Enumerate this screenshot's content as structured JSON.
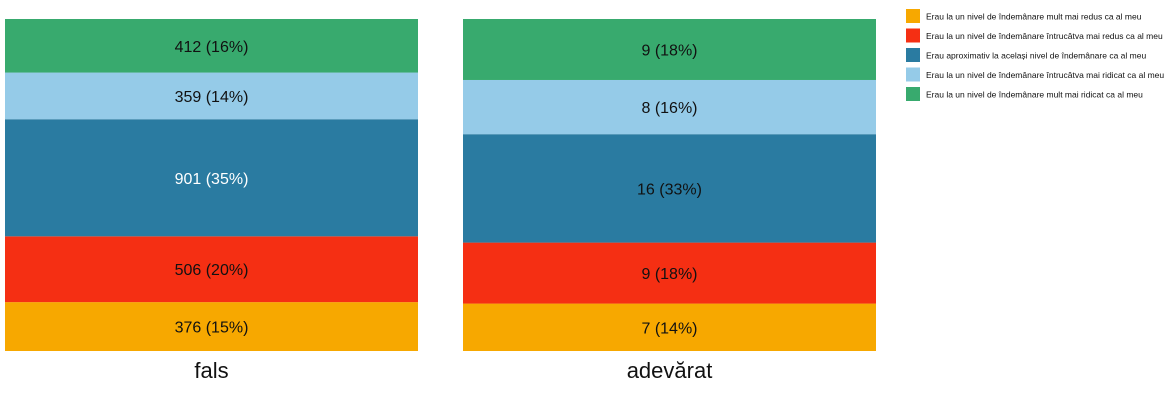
{
  "chart_data": {
    "type": "bar",
    "stacked": true,
    "normalized": true,
    "categories": [
      "fals",
      "adevărat"
    ],
    "series": [
      {
        "name": "Erau la un nivel de îndemânare mult mai redus ca al meu",
        "color": "#F7A800",
        "values": [
          376,
          7
        ],
        "labels": [
          "376 (15%)",
          "7 (14%)"
        ]
      },
      {
        "name": "Erau la un nivel de îndemânare întrucâtva mai redus ca al meu",
        "color": "#F52F13",
        "values": [
          506,
          9
        ],
        "labels": [
          "506 (20%)",
          "9 (18%)"
        ]
      },
      {
        "name": "Erau aproximativ la același nivel de îndemânare ca al meu",
        "color": "#2A7BA1",
        "values": [
          901,
          16
        ],
        "labels": [
          "901 (35%)",
          "16 (33%)"
        ]
      },
      {
        "name": "Erau la un nivel de îndemânare întrucâtva mai ridicat ca al meu",
        "color": "#95CBE8",
        "values": [
          359,
          8
        ],
        "labels": [
          "359 (14%)",
          "8 (16%)"
        ]
      },
      {
        "name": "Erau la un nivel de îndemânare mult mai ridicat ca al meu",
        "color": "#38AA6E",
        "values": [
          412,
          9
        ],
        "labels": [
          "412 (16%)",
          "9 (18%)"
        ]
      }
    ],
    "legend_position": "top-right",
    "grid": false
  }
}
